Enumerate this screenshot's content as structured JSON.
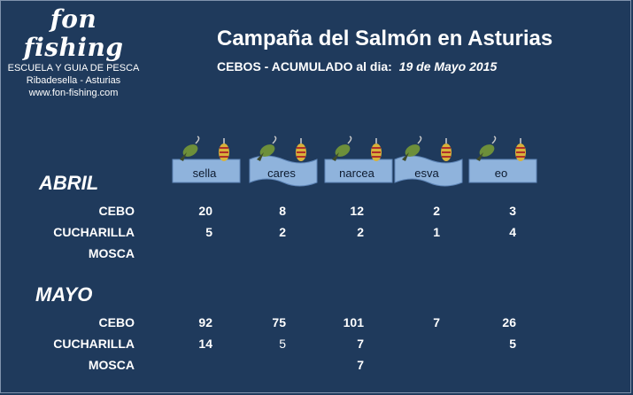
{
  "brand": {
    "name": "fon fishing",
    "line1": "ESCUELA  Y GUIA DE PESCA",
    "line2": "Ribadesella - Asturias",
    "line3": "www.fon-fishing.com"
  },
  "chart_data": {
    "type": "table",
    "title": "Campaña del Salmón en Asturias",
    "subtitle_prefix": "CEBOS  - ACUMULADO al dia:",
    "subtitle_date": "19 de Mayo 2015",
    "columns": [
      "sella",
      "cares",
      "narcea",
      "esva",
      "eo"
    ],
    "sections": [
      {
        "month": "ABRIL",
        "rows": [
          {
            "label": "CEBO",
            "values": [
              "20",
              "8",
              "12",
              "2",
              "3"
            ]
          },
          {
            "label": "CUCHARILLA",
            "values": [
              "5",
              "2",
              "2",
              "1",
              "4"
            ]
          },
          {
            "label": "MOSCA",
            "values": [
              "",
              "",
              "",
              "",
              ""
            ]
          }
        ]
      },
      {
        "month": "MAYO",
        "rows": [
          {
            "label": "CEBO",
            "values": [
              "92",
              "75",
              "101",
              "7",
              "26"
            ]
          },
          {
            "label": "CUCHARILLA",
            "values": [
              "14",
              "5",
              "7",
              "",
              "5"
            ]
          },
          {
            "label": "MOSCA",
            "values": [
              "",
              "",
              "7",
              "",
              ""
            ]
          }
        ]
      }
    ]
  },
  "colors": {
    "background": "#1f3a5c",
    "banner": "#8fb3dc",
    "text": "#ffffff"
  }
}
